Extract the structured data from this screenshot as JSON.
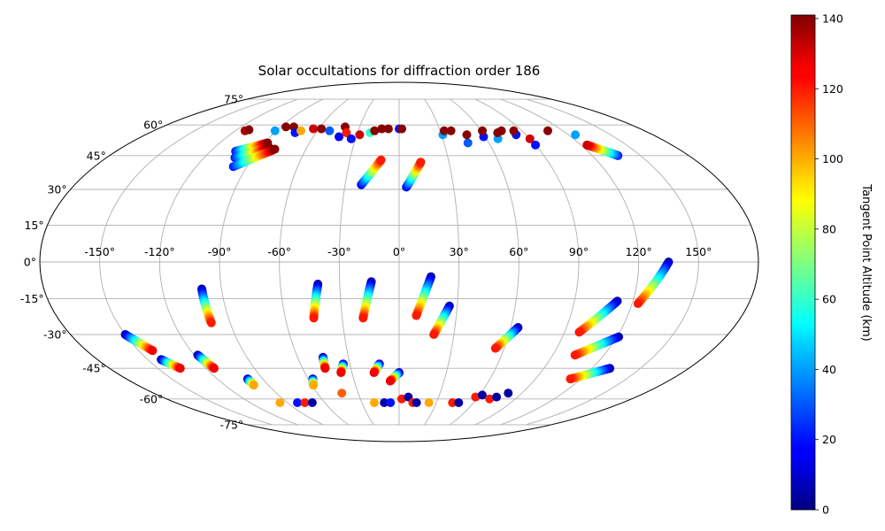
{
  "chart_data": {
    "type": "scatter",
    "projection": "mollweide",
    "title": "Solar occultations for diffraction order 186",
    "longitude_ticks": [
      "-150°",
      "-120°",
      "-90°",
      "-60°",
      "-30°",
      "0°",
      "30°",
      "60°",
      "90°",
      "120°",
      "150°"
    ],
    "longitude_tick_values": [
      -150,
      -120,
      -90,
      -60,
      -30,
      0,
      30,
      60,
      90,
      120,
      150
    ],
    "latitude_ticks": [
      "-75°",
      "-60°",
      "-45°",
      "-30°",
      "-15°",
      "0°",
      "15°",
      "30°",
      "45°",
      "60°",
      "75°"
    ],
    "latitude_tick_values": [
      -75,
      -60,
      -45,
      -30,
      -15,
      0,
      15,
      30,
      45,
      60,
      75
    ],
    "color_encoding": "Tangent Point Altitude (km)",
    "colorbar": {
      "label": "Tangent Point Altitude (km)",
      "range": [
        0,
        141
      ],
      "ticks": [
        "0",
        "20",
        "40",
        "60",
        "80",
        "100",
        "120",
        "140"
      ],
      "tick_values": [
        0,
        20,
        40,
        60,
        80,
        100,
        120,
        140
      ],
      "colormap": "jet"
    },
    "tracks": [
      {
        "lon0": -104,
        "lat0": 47,
        "lon1": -88,
        "lat1": 51,
        "alt0": 20,
        "alt1": 140
      },
      {
        "lon0": -101,
        "lat0": 44,
        "lon1": -85,
        "lat1": 49,
        "alt0": 20,
        "alt1": 140
      },
      {
        "lon0": -98,
        "lat0": 40,
        "lon1": -80,
        "lat1": 48,
        "alt0": 20,
        "alt1": 140
      },
      {
        "lon0": -21,
        "lat0": 32,
        "lon1": -11,
        "lat1": 43,
        "alt0": 15,
        "alt1": 120
      },
      {
        "lon0": 4,
        "lat0": 31,
        "lon1": 13,
        "lat1": 42,
        "alt0": 15,
        "alt1": 120
      },
      {
        "lon0": 136,
        "lat0": 45,
        "lon1": 124,
        "lat1": 50,
        "alt0": 20,
        "alt1": 130
      },
      {
        "lon0": -100,
        "lat0": -11,
        "lon1": -100,
        "lat1": -25,
        "alt0": 5,
        "alt1": 120
      },
      {
        "lon0": -41,
        "lat0": -9,
        "lon1": -45,
        "lat1": -23,
        "alt0": 5,
        "alt1": 120
      },
      {
        "lon0": -14,
        "lat0": -8,
        "lon1": -19,
        "lat1": -23,
        "alt0": 5,
        "alt1": 120
      },
      {
        "lon0": 16,
        "lat0": -6,
        "lon1": 9,
        "lat1": -22,
        "alt0": 5,
        "alt1": 120
      },
      {
        "lon0": 26,
        "lat0": -18,
        "lon1": 19,
        "lat1": -30,
        "alt0": 5,
        "alt1": 120
      },
      {
        "lon0": 64,
        "lat0": -27,
        "lon1": 55,
        "lat1": -36,
        "alt0": 5,
        "alt1": 120
      },
      {
        "lon0": 112,
        "lat0": -16,
        "lon1": 98,
        "lat1": -29,
        "alt0": 5,
        "alt1": 120
      },
      {
        "lon0": 135,
        "lat0": 0,
        "lon1": 123,
        "lat1": -17,
        "alt0": 5,
        "alt1": 120
      },
      {
        "lon0": 121,
        "lat0": -31,
        "lon1": 103,
        "lat1": -39,
        "alt0": 5,
        "alt1": 120
      },
      {
        "lon0": 131,
        "lat0": -45,
        "lon1": 113,
        "lat1": -50,
        "alt0": 5,
        "alt1": 120
      },
      {
        "lon0": -150,
        "lat0": -30,
        "lon1": -142,
        "lat1": -37,
        "alt0": 5,
        "alt1": 125
      },
      {
        "lon0": -142,
        "lat0": -41,
        "lon1": -136,
        "lat1": -45,
        "alt0": 5,
        "alt1": 125
      },
      {
        "lon0": -118,
        "lat0": -39,
        "lon1": -115,
        "lat1": -45,
        "alt0": 5,
        "alt1": 125
      },
      {
        "lon0": -100,
        "lat0": -50,
        "lon1": -100,
        "lat1": -53,
        "alt0": 5,
        "alt1": 100
      },
      {
        "lon0": -57,
        "lat0": -50,
        "lon1": -59,
        "lat1": -53,
        "alt0": 5,
        "alt1": 100
      },
      {
        "lon0": -45,
        "lat0": -40,
        "lon1": -46,
        "lat1": -45,
        "alt0": 5,
        "alt1": 125
      },
      {
        "lon0": -34,
        "lat0": -43,
        "lon1": -37,
        "lat1": -47,
        "alt0": 5,
        "alt1": 125
      },
      {
        "lon0": -12,
        "lat0": -43,
        "lon1": -16,
        "lat1": -47,
        "alt0": 5,
        "alt1": 125
      },
      {
        "lon0": 0,
        "lat0": -47,
        "lon1": -6,
        "lat1": -51,
        "alt0": 5,
        "alt1": 125
      }
    ],
    "points": [
      {
        "lon": -113,
        "lat": 57,
        "alt": 135
      },
      {
        "lon": -111,
        "lat": 57.5,
        "alt": 140
      },
      {
        "lon": -91,
        "lat": 57,
        "alt": 40
      },
      {
        "lon": -86,
        "lat": 59,
        "alt": 140
      },
      {
        "lon": -80,
        "lat": 59,
        "alt": 140
      },
      {
        "lon": -75,
        "lat": 56,
        "alt": 20
      },
      {
        "lon": -72,
        "lat": 57,
        "alt": 100
      },
      {
        "lon": -64,
        "lat": 58,
        "alt": 130
      },
      {
        "lon": -58,
        "lat": 58,
        "alt": 140
      },
      {
        "lon": -51,
        "lat": 57,
        "alt": 30
      },
      {
        "lon": -42,
        "lat": 54,
        "alt": 15
      },
      {
        "lon": -41,
        "lat": 59,
        "alt": 140
      },
      {
        "lon": -38,
        "lat": 56,
        "alt": 120
      },
      {
        "lon": -33,
        "lat": 53,
        "alt": 20
      },
      {
        "lon": -28,
        "lat": 55,
        "alt": 130
      },
      {
        "lon": -21,
        "lat": 56,
        "alt": 60
      },
      {
        "lon": -18,
        "lat": 57,
        "alt": 140
      },
      {
        "lon": -13,
        "lat": 58,
        "alt": 140
      },
      {
        "lon": -8,
        "lat": 58,
        "alt": 140
      },
      {
        "lon": 0,
        "lat": 58,
        "alt": 20
      },
      {
        "lon": 2,
        "lat": 58,
        "alt": 140
      },
      {
        "lon": 31,
        "lat": 55,
        "alt": 40
      },
      {
        "lon": 33,
        "lat": 57,
        "alt": 140
      },
      {
        "lon": 38,
        "lat": 57,
        "alt": 140
      },
      {
        "lon": 46,
        "lat": 51,
        "alt": 30
      },
      {
        "lon": 48,
        "lat": 55,
        "alt": 140
      },
      {
        "lon": 59,
        "lat": 54,
        "alt": 20
      },
      {
        "lon": 61,
        "lat": 57,
        "alt": 140
      },
      {
        "lon": 68,
        "lat": 53,
        "alt": 40
      },
      {
        "lon": 71,
        "lat": 56,
        "alt": 140
      },
      {
        "lon": 75,
        "lat": 57,
        "alt": 140
      },
      {
        "lon": 83,
        "lat": 55,
        "alt": 20
      },
      {
        "lon": 84,
        "lat": 57,
        "alt": 140
      },
      {
        "lon": 90,
        "lat": 53,
        "alt": 130
      },
      {
        "lon": 90,
        "lat": 50,
        "alt": 20
      },
      {
        "lon": 109,
        "lat": 57,
        "alt": 140
      },
      {
        "lon": 125,
        "lat": 55,
        "alt": 40
      },
      {
        "lon": -96,
        "lat": -62,
        "alt": 100
      },
      {
        "lon": -82,
        "lat": -62,
        "alt": 20
      },
      {
        "lon": -76,
        "lat": -62,
        "alt": 120
      },
      {
        "lon": -70,
        "lat": -62,
        "alt": 5
      },
      {
        "lon": -42,
        "lat": -57,
        "alt": 110
      },
      {
        "lon": -20,
        "lat": -62,
        "alt": 100
      },
      {
        "lon": -12,
        "lat": -62,
        "alt": 5
      },
      {
        "lon": -7,
        "lat": -62,
        "alt": 20
      },
      {
        "lon": 2,
        "lat": -60,
        "alt": 120
      },
      {
        "lon": 7,
        "lat": -59,
        "alt": 5
      },
      {
        "lon": 11,
        "lat": -62,
        "alt": 120
      },
      {
        "lon": 14,
        "lat": -62,
        "alt": 5
      },
      {
        "lon": 24,
        "lat": -62,
        "alt": 100
      },
      {
        "lon": 43,
        "lat": -62,
        "alt": 120
      },
      {
        "lon": 48,
        "lat": -62,
        "alt": 5
      },
      {
        "lon": 58,
        "lat": -59,
        "alt": 120
      },
      {
        "lon": 62,
        "lat": -58,
        "alt": 5
      },
      {
        "lon": 70,
        "lat": -60,
        "alt": 120
      },
      {
        "lon": 74,
        "lat": -59,
        "alt": 5
      },
      {
        "lon": 80,
        "lat": -57,
        "alt": 5
      }
    ]
  }
}
